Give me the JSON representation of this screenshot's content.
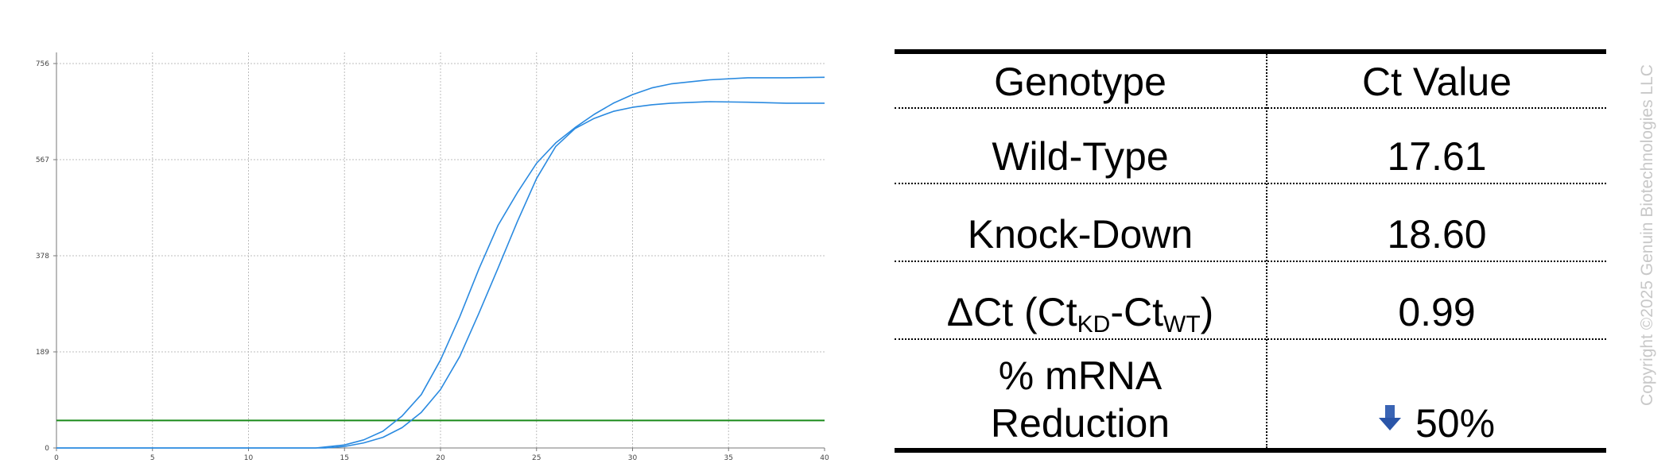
{
  "chart_data": {
    "type": "line",
    "title": "",
    "xlabel": "",
    "ylabel": "",
    "xlim": [
      0,
      40
    ],
    "ylim": [
      0,
      756
    ],
    "x_ticks": [
      "0",
      "5",
      "10",
      "15",
      "20",
      "25",
      "30",
      "35",
      "40"
    ],
    "y_ticks": [
      "0",
      "189",
      "378",
      "567",
      "756"
    ],
    "grid": true,
    "legend": "none",
    "threshold": {
      "y": 54,
      "color": "#1a8a1a"
    },
    "series": [
      {
        "color": "#2a8ae0",
        "x": [
          0,
          13.5,
          15,
          16,
          17,
          18,
          19,
          20,
          21,
          22,
          23,
          24,
          25,
          26,
          27,
          28,
          29,
          30,
          31,
          32,
          34,
          36,
          38,
          40
        ],
        "y": [
          0,
          0,
          6,
          16,
          33,
          63,
          105,
          173,
          258,
          352,
          438,
          502,
          560,
          600,
          630,
          656,
          678,
          695,
          708,
          716,
          724,
          728,
          728,
          729
        ]
      },
      {
        "color": "#2a8ae0",
        "x": [
          0,
          14,
          15,
          16,
          17,
          18,
          19,
          20,
          21,
          22,
          23,
          24,
          25,
          26,
          27,
          28,
          29,
          30,
          31,
          32,
          34,
          36,
          38,
          40
        ],
        "y": [
          0,
          0,
          3,
          10,
          21,
          40,
          70,
          115,
          180,
          265,
          354,
          445,
          530,
          593,
          628,
          648,
          662,
          670,
          675,
          678,
          681,
          680,
          678,
          678
        ]
      }
    ]
  },
  "table": {
    "header": {
      "genotype": "Genotype",
      "ct": "Ct Value"
    },
    "rows": {
      "wt": {
        "label": "Wild-Type",
        "value": "17.61"
      },
      "kd": {
        "label": "Knock-Down",
        "value": "18.60"
      },
      "delta": {
        "prefix": "ΔCt (Ct",
        "sub1": "KD",
        "mid": "-Ct",
        "sub2": "WT",
        "suffix": ")",
        "value": "0.99"
      },
      "reduction": {
        "label_line1": "% mRNA",
        "label_line2": "Reduction",
        "value": "50%",
        "icon": "arrow-down-icon"
      }
    }
  },
  "watermark": "Copyright ©2025 Genuin Biotechnologies LLC"
}
